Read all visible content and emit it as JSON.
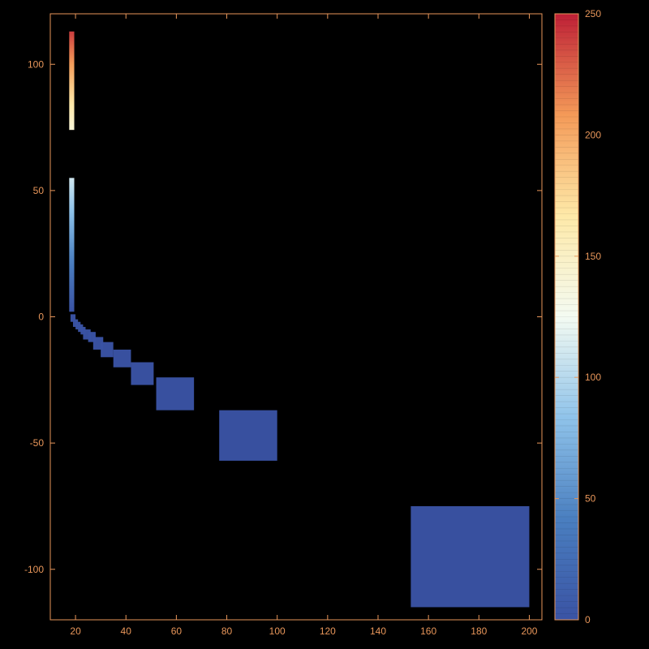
{
  "chart_data": {
    "type": "heatmap",
    "title": "",
    "xlabel": "",
    "ylabel": "",
    "xlim": [
      10,
      205
    ],
    "ylim": [
      -120,
      120
    ],
    "x_ticks": [
      20,
      40,
      60,
      80,
      100,
      120,
      140,
      160,
      180,
      200
    ],
    "y_ticks": [
      100,
      50,
      0,
      -50,
      -100
    ],
    "x_tick_labels": [
      "20",
      "40",
      "60",
      "80",
      "100",
      "120",
      "140",
      "160",
      "180",
      "200"
    ],
    "y_tick_labels": [
      "100",
      "50",
      "0",
      "-50",
      "-100"
    ],
    "grid": false,
    "colorbar": {
      "range": [
        0,
        250
      ],
      "ticks": [
        0,
        50,
        100,
        150,
        200,
        250
      ],
      "tick_labels": [
        "0",
        "50",
        "100",
        "150",
        "200",
        "250"
      ],
      "colormap": [
        "#3a53a4",
        "#4a7fc0",
        "#8fc3ea",
        "#f4fbf2",
        "#fee9a8",
        "#f49a58",
        "#be1f36"
      ]
    },
    "column_strip": {
      "x": [
        17.5,
        19.5
      ],
      "segments": [
        {
          "y": [
            2,
            55
          ],
          "value_range": [
            0,
            110
          ]
        },
        {
          "y": [
            74,
            113
          ],
          "value_range": [
            140,
            240
          ]
        }
      ]
    },
    "blocks": [
      {
        "x": [
          18,
          20
        ],
        "y": [
          -2,
          1
        ],
        "value": 0
      },
      {
        "x": [
          19,
          21
        ],
        "y": [
          -4,
          -1
        ],
        "value": 0
      },
      {
        "x": [
          20,
          22
        ],
        "y": [
          -5,
          -2
        ],
        "value": 0
      },
      {
        "x": [
          21,
          23
        ],
        "y": [
          -6,
          -3
        ],
        "value": 0
      },
      {
        "x": [
          22,
          24
        ],
        "y": [
          -7,
          -4
        ],
        "value": 0
      },
      {
        "x": [
          23,
          26
        ],
        "y": [
          -9,
          -5
        ],
        "value": 0
      },
      {
        "x": [
          25,
          28
        ],
        "y": [
          -10,
          -6
        ],
        "value": 0
      },
      {
        "x": [
          27,
          31
        ],
        "y": [
          -13,
          -8
        ],
        "value": 0
      },
      {
        "x": [
          30,
          35
        ],
        "y": [
          -16,
          -10
        ],
        "value": 0
      },
      {
        "x": [
          35,
          42
        ],
        "y": [
          -20,
          -13
        ],
        "value": 0
      },
      {
        "x": [
          42,
          51
        ],
        "y": [
          -27,
          -18
        ],
        "value": 0
      },
      {
        "x": [
          52,
          67
        ],
        "y": [
          -37,
          -24
        ],
        "value": 0
      },
      {
        "x": [
          77,
          100
        ],
        "y": [
          -57,
          -37
        ],
        "value": 0
      },
      {
        "x": [
          153,
          200
        ],
        "y": [
          -115,
          -75
        ],
        "value": 0
      }
    ]
  }
}
